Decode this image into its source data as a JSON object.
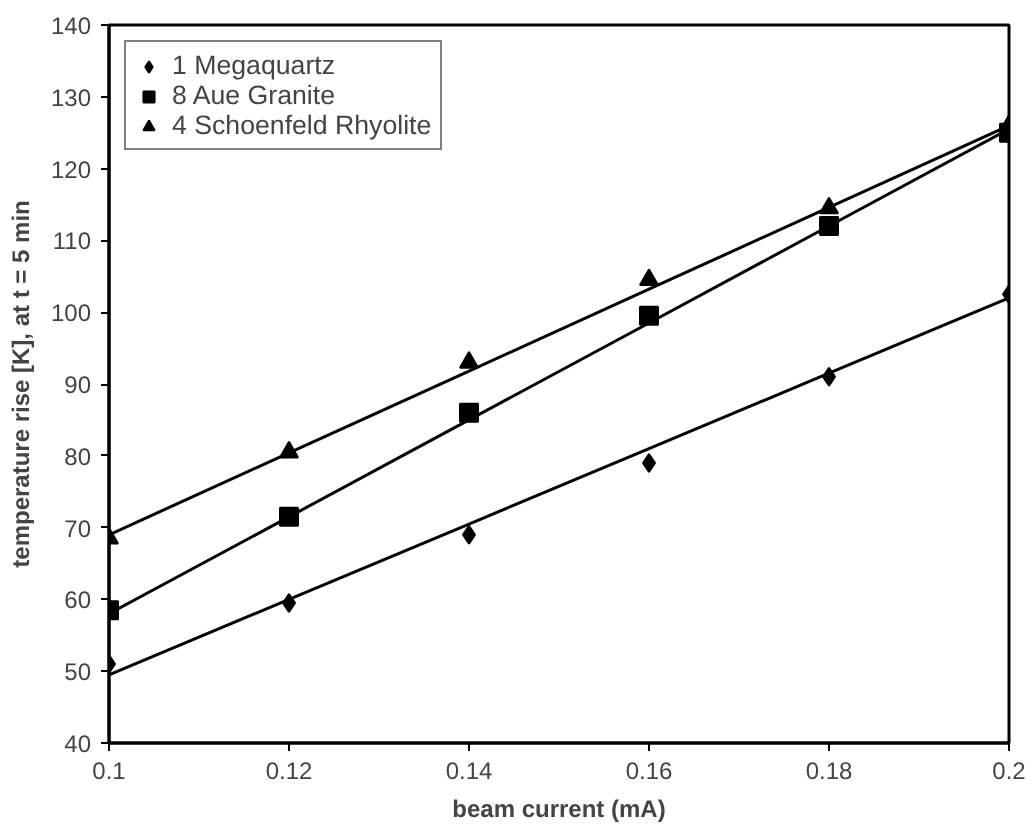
{
  "chart_data": {
    "type": "scatter",
    "xlabel": "beam current (mA)",
    "ylabel": "temperature rise [K], at t = 5 min",
    "x": [
      0.1,
      0.12,
      0.14,
      0.16,
      0.18,
      0.2
    ],
    "series": [
      {
        "name": "1 Megaquartz",
        "color": "#000000",
        "marker": "diamond",
        "values": [
          51,
          59.5,
          69,
          79,
          91,
          102.5
        ]
      },
      {
        "name": "8 Aue Granite",
        "color": "#000000",
        "marker": "square",
        "values": [
          58.5,
          71.5,
          86,
          99.5,
          112,
          125
        ]
      },
      {
        "name": "4 Schoenfeld Rhyolite",
        "color": "#000000",
        "marker": "triangle",
        "values": [
          68.5,
          80.5,
          93,
          104.5,
          114.5,
          126
        ]
      },
      {
        "type": "line",
        "color": "#000000",
        "values": [
          49.5,
          60,
          70.5,
          81,
          91.5,
          102
        ]
      },
      {
        "type": "line",
        "color": "#000000",
        "values": [
          58,
          71.5,
          85,
          98.5,
          112,
          125.5
        ]
      },
      {
        "type": "line",
        "color": "#000000",
        "values": [
          69,
          80.4,
          91.8,
          103.2,
          114.6,
          126
        ]
      }
    ],
    "xlim": [
      0.1,
      0.2
    ],
    "xticks": [
      0.1,
      0.12,
      0.14,
      0.16,
      0.18,
      0.2
    ],
    "ylim": [
      40,
      140
    ],
    "yticks": [
      40,
      50,
      60,
      70,
      80,
      90,
      100,
      110,
      120,
      130,
      140
    ],
    "grid": false,
    "legend": "top left"
  }
}
